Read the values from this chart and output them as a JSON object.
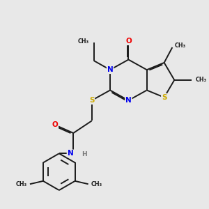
{
  "background_color": "#e8e8e8",
  "atom_colors": {
    "C": "#1a1a1a",
    "N": "#0000ee",
    "O": "#ee0000",
    "S": "#ccaa00",
    "H": "#777777"
  },
  "bond_color": "#1a1a1a",
  "bond_width": 1.4,
  "dbo": 0.055,
  "figsize": [
    3.0,
    3.0
  ],
  "dpi": 100,
  "xlim": [
    0,
    10
  ],
  "ylim": [
    0,
    10
  ]
}
